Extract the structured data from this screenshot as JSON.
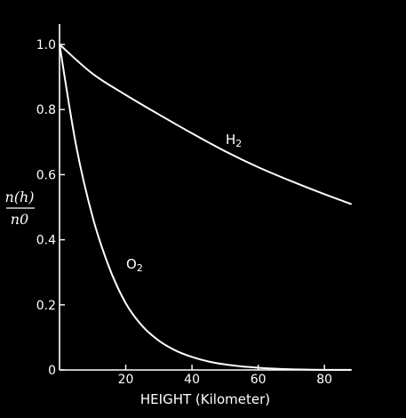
{
  "chart_data": {
    "type": "line",
    "title": "",
    "xlabel": "HEIGHT (Kilometer)",
    "ylabel": {
      "numerator": "n(h)",
      "denominator": "n0"
    },
    "xlim": [
      0,
      88
    ],
    "ylim": [
      0,
      1.0
    ],
    "x_ticks": [
      "20",
      "40",
      "60",
      "80"
    ],
    "x_tick_values": [
      20,
      40,
      60,
      80
    ],
    "y_ticks": [
      "0",
      "0.2",
      "0.4",
      "0.6",
      "0.8",
      "1.0"
    ],
    "y_tick_values": [
      0,
      0.2,
      0.4,
      0.6,
      0.8,
      1.0
    ],
    "grid": false,
    "legend": "none",
    "series": [
      {
        "name": "H2",
        "label_main": "H",
        "label_sub": "2",
        "x": [
          0,
          10,
          20,
          30,
          40,
          50,
          60,
          70,
          80,
          88
        ],
        "y": [
          1.0,
          0.91,
          0.845,
          0.785,
          0.727,
          0.672,
          0.623,
          0.58,
          0.54,
          0.51
        ]
      },
      {
        "name": "O2",
        "label_main": "O",
        "label_sub": "2",
        "x": [
          0,
          5,
          10,
          15,
          20,
          25,
          30,
          35,
          40,
          45,
          50,
          55,
          60,
          65,
          70,
          75,
          80,
          88
        ],
        "y": [
          1.0,
          0.69,
          0.47,
          0.315,
          0.205,
          0.135,
          0.09,
          0.06,
          0.04,
          0.026,
          0.017,
          0.011,
          0.007,
          0.004,
          0.002,
          0.001,
          0.0005,
          0.0002
        ]
      }
    ]
  }
}
